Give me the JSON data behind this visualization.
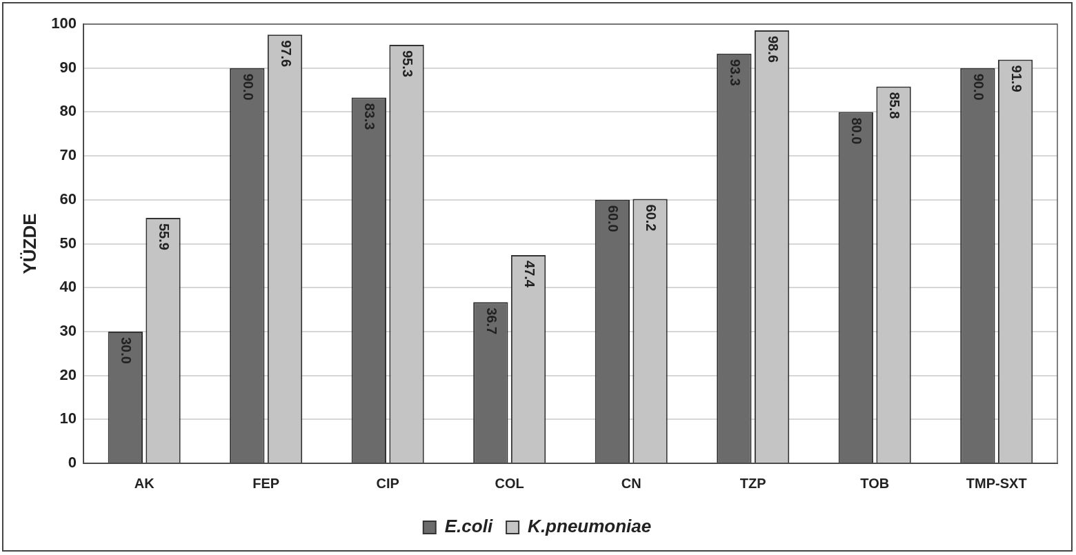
{
  "chart_data": {
    "type": "bar",
    "ylabel": "YÜZDE",
    "categories": [
      "AK",
      "FEP",
      "CIP",
      "COL",
      "CN",
      "TZP",
      "TOB",
      "TMP-SXT"
    ],
    "series": [
      {
        "name": "E.coli",
        "color": "#6b6b6b",
        "values": [
          30,
          90,
          83.3,
          36.7,
          60,
          93.3,
          80,
          90
        ],
        "value_labels": [
          "30.0",
          "90.0",
          "83.3",
          "36.7",
          "60.0",
          "93.3",
          "80.0",
          "90.0"
        ]
      },
      {
        "name": "K.pneumoniae",
        "color": "#c4c4c4",
        "values": [
          55.9,
          97.6,
          95.3,
          47.4,
          60.2,
          98.6,
          85.8,
          91.9
        ],
        "value_labels": [
          "55.9",
          "97.6",
          "95.3",
          "47.4",
          "60.2",
          "98.6",
          "85.8",
          "91.9"
        ]
      }
    ],
    "ylim": [
      0,
      100
    ],
    "yticks": [
      0,
      10,
      20,
      30,
      40,
      50,
      60,
      70,
      80,
      90,
      100
    ],
    "grid": "y",
    "legend": "bottom"
  }
}
